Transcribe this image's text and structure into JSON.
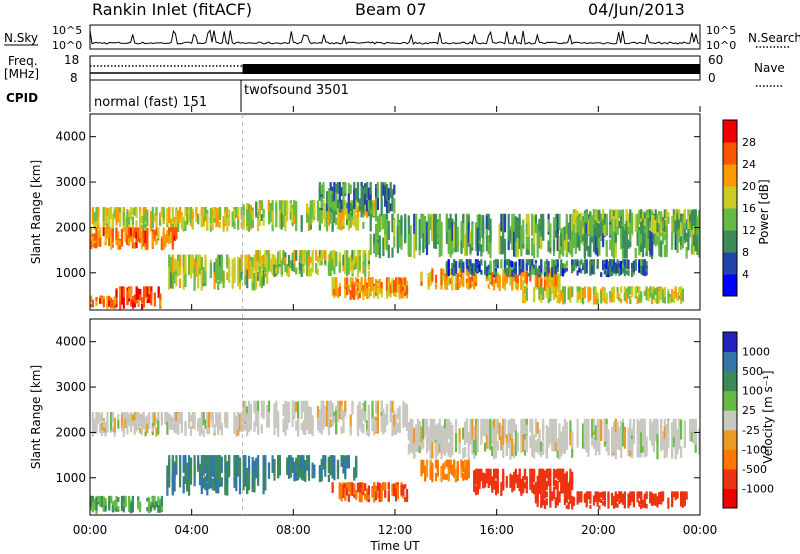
{
  "header": {
    "station": "Rankin Inlet (fitACF)",
    "beam": "Beam 07",
    "date": "04/Jun/2013"
  },
  "noise_panel": {
    "left_label": "N.Sky",
    "right_label": "N.Search",
    "left_ticks": [
      "10^5",
      "10^0"
    ],
    "right_ticks": [
      "10^5",
      "10^0"
    ]
  },
  "freq_panel": {
    "left_label_1": "Freq.",
    "left_label_2": "[MHz]",
    "right_label": "Nave",
    "left_ticks": [
      "18",
      "8"
    ],
    "right_ticks": [
      "60",
      "0"
    ]
  },
  "cpid_panel": {
    "label": "CPID",
    "modes": [
      {
        "name": "normal (fast) 151",
        "start_hour": 0,
        "end_hour": 6
      },
      {
        "name": "twofsound 3501",
        "start_hour": 6,
        "end_hour": 24
      }
    ]
  },
  "x_axis": {
    "label": "Time UT",
    "ticks": [
      "00:00",
      "04:00",
      "08:00",
      "12:00",
      "16:00",
      "20:00",
      "00:00"
    ]
  },
  "colors": {
    "power_scale": [
      "#0000ff",
      "#2244aa",
      "#3c8c5a",
      "#66bb44",
      "#cccc22",
      "#ff9900",
      "#ff5500",
      "#ee0000"
    ],
    "velocity_scale": [
      "#2222bb",
      "#3377aa",
      "#3a8a5a",
      "#66bb44",
      "#c8c8c0",
      "#ee9922",
      "#ff7700",
      "#ee3311",
      "#ee0000"
    ]
  },
  "chart_data": [
    {
      "type": "heatmap",
      "title": "",
      "xlabel": "Time UT",
      "ylabel": "Slant Range [km]",
      "xlim": [
        0,
        24
      ],
      "ylim": [
        180,
        4500
      ],
      "y_ticks": [
        "1000",
        "2000",
        "3000",
        "4000"
      ],
      "colorbar_label": "Power [dB]",
      "colorbar_ticks": [
        "4",
        "8",
        "12",
        "16",
        "20",
        "24",
        "28"
      ],
      "colorbar_range": [
        0,
        30
      ],
      "regions": [
        {
          "t0": 0.0,
          "t1": 6.0,
          "r0": 1900,
          "r1": 2450,
          "value": 18
        },
        {
          "t0": 0.0,
          "t1": 3.5,
          "r0": 1500,
          "r1": 2000,
          "value": 24
        },
        {
          "t0": 1.0,
          "t1": 2.8,
          "r0": 180,
          "r1": 700,
          "value": 28
        },
        {
          "t0": 0.0,
          "t1": 1.0,
          "r0": 200,
          "r1": 500,
          "value": 24
        },
        {
          "t0": 3.0,
          "t1": 7.0,
          "r0": 600,
          "r1": 1400,
          "value": 16
        },
        {
          "t0": 6.0,
          "t1": 11.5,
          "r0": 1900,
          "r1": 2600,
          "value": 16
        },
        {
          "t0": 9.0,
          "t1": 12.0,
          "r0": 2300,
          "r1": 3000,
          "value": 10
        },
        {
          "t0": 6.5,
          "t1": 11.0,
          "r0": 900,
          "r1": 1500,
          "value": 16
        },
        {
          "t0": 9.5,
          "t1": 12.5,
          "r0": 400,
          "r1": 900,
          "value": 22
        },
        {
          "t0": 11.0,
          "t1": 24.0,
          "r0": 1300,
          "r1": 2300,
          "value": 12
        },
        {
          "t0": 13.0,
          "t1": 18.5,
          "r0": 600,
          "r1": 1100,
          "value": 22
        },
        {
          "t0": 17.0,
          "t1": 23.5,
          "r0": 300,
          "r1": 700,
          "value": 18
        },
        {
          "t0": 19.0,
          "t1": 24.0,
          "r0": 1800,
          "r1": 2400,
          "value": 14
        },
        {
          "t0": 14.0,
          "t1": 22.0,
          "r0": 900,
          "r1": 1300,
          "value": 8
        }
      ]
    },
    {
      "type": "heatmap",
      "title": "",
      "xlabel": "Time UT",
      "ylabel": "Slant Range [km]",
      "xlim": [
        0,
        24
      ],
      "ylim": [
        180,
        4500
      ],
      "y_ticks": [
        "1000",
        "2000",
        "3000",
        "4000"
      ],
      "colorbar_label": "Velocity [m s⁻¹]",
      "colorbar_ticks": [
        "1000",
        "500",
        "100",
        "25",
        "-25",
        "-100",
        "-500",
        "-1000"
      ],
      "colorbar_range": [
        -1000,
        1000
      ],
      "regions": [
        {
          "t0": 0.0,
          "t1": 6.0,
          "r0": 1900,
          "r1": 2450,
          "value": 0
        },
        {
          "t0": 6.0,
          "t1": 12.5,
          "r0": 1900,
          "r1": 2700,
          "value": 0
        },
        {
          "t0": 3.0,
          "t1": 7.0,
          "r0": 600,
          "r1": 1500,
          "value": 300
        },
        {
          "t0": 0.0,
          "t1": 3.0,
          "r0": 200,
          "r1": 600,
          "value": 60
        },
        {
          "t0": 7.0,
          "t1": 10.5,
          "r0": 900,
          "r1": 1500,
          "value": 300
        },
        {
          "t0": 9.5,
          "t1": 12.5,
          "r0": 450,
          "r1": 900,
          "value": -300
        },
        {
          "t0": 12.5,
          "t1": 24.0,
          "r0": 1400,
          "r1": 2300,
          "value": 0
        },
        {
          "t0": 15.0,
          "t1": 19.0,
          "r0": 600,
          "r1": 1200,
          "value": -400
        },
        {
          "t0": 17.5,
          "t1": 23.5,
          "r0": 300,
          "r1": 700,
          "value": -400
        },
        {
          "t0": 13.0,
          "t1": 15.0,
          "r0": 900,
          "r1": 1400,
          "value": -80
        }
      ]
    }
  ]
}
